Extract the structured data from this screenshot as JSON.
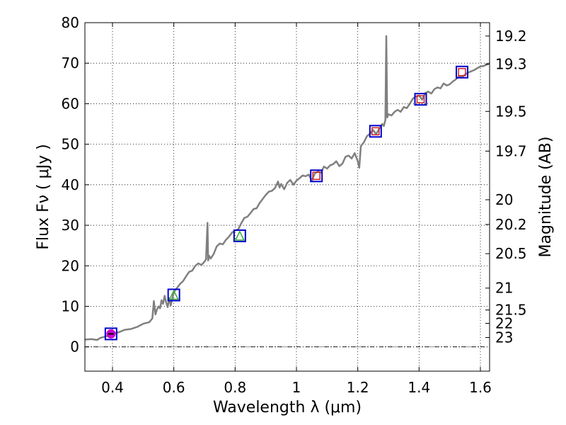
{
  "chart_data": {
    "type": "line",
    "xlabel": "Wavelength  λ (μm)",
    "ylabel": "Flux  Fν  ( μJy )",
    "ylabel2": "Magnitude (AB)",
    "xlim": [
      0.31,
      1.63
    ],
    "ylim": [
      -6,
      80
    ],
    "x_ticks": [
      {
        "value": 0.4,
        "label": "0.4"
      },
      {
        "value": 0.6,
        "label": "0.6"
      },
      {
        "value": 0.8,
        "label": "0.8"
      },
      {
        "value": 1.0,
        "label": "1"
      },
      {
        "value": 1.2,
        "label": "1.2"
      },
      {
        "value": 1.4,
        "label": "1.4"
      },
      {
        "value": 1.6,
        "label": "1.6"
      }
    ],
    "y_ticks": [
      {
        "value": 0,
        "label": "0"
      },
      {
        "value": 10,
        "label": "10"
      },
      {
        "value": 20,
        "label": "20"
      },
      {
        "value": 30,
        "label": "30"
      },
      {
        "value": 40,
        "label": "40"
      },
      {
        "value": 50,
        "label": "50"
      },
      {
        "value": 60,
        "label": "60"
      },
      {
        "value": 70,
        "label": "70"
      },
      {
        "value": 80,
        "label": "80"
      }
    ],
    "mag_ticks": [
      {
        "flux": 76.7,
        "label": "19.2"
      },
      {
        "flux": 69.8,
        "label": "19.3"
      },
      {
        "flux": 58.1,
        "label": "19.5"
      },
      {
        "flux": 48.3,
        "label": "19.7"
      },
      {
        "flux": 36.3,
        "label": "20"
      },
      {
        "flux": 30.2,
        "label": "20.2"
      },
      {
        "flux": 23.0,
        "label": "20.5"
      },
      {
        "flux": 14.5,
        "label": "21"
      },
      {
        "flux": 9.1,
        "label": "21.5"
      },
      {
        "flux": 5.8,
        "label": "22"
      },
      {
        "flux": 2.3,
        "label": "23"
      }
    ],
    "series": [
      {
        "name": "spectrum",
        "color": "#808080",
        "x": [
          0.31,
          0.33,
          0.35,
          0.36,
          0.37,
          0.38,
          0.39,
          0.4,
          0.41,
          0.42,
          0.44,
          0.46,
          0.48,
          0.5,
          0.52,
          0.53,
          0.535,
          0.54,
          0.545,
          0.55,
          0.555,
          0.56,
          0.565,
          0.57,
          0.575,
          0.58,
          0.585,
          0.59,
          0.6,
          0.61,
          0.62,
          0.63,
          0.64,
          0.65,
          0.66,
          0.67,
          0.68,
          0.69,
          0.7,
          0.705,
          0.71,
          0.712,
          0.715,
          0.72,
          0.73,
          0.74,
          0.75,
          0.76,
          0.77,
          0.78,
          0.79,
          0.8,
          0.81,
          0.82,
          0.83,
          0.84,
          0.85,
          0.86,
          0.87,
          0.88,
          0.89,
          0.9,
          0.91,
          0.92,
          0.93,
          0.94,
          0.945,
          0.95,
          0.96,
          0.97,
          0.98,
          0.99,
          1.0,
          1.01,
          1.02,
          1.03,
          1.04,
          1.05,
          1.06,
          1.07,
          1.08,
          1.09,
          1.1,
          1.11,
          1.12,
          1.13,
          1.14,
          1.15,
          1.16,
          1.17,
          1.18,
          1.19,
          1.2,
          1.205,
          1.21,
          1.22,
          1.23,
          1.24,
          1.25,
          1.26,
          1.27,
          1.28,
          1.285,
          1.29,
          1.293,
          1.296,
          1.3,
          1.31,
          1.32,
          1.33,
          1.34,
          1.35,
          1.36,
          1.37,
          1.38,
          1.39,
          1.4,
          1.41,
          1.42,
          1.43,
          1.44,
          1.45,
          1.46,
          1.47,
          1.48,
          1.49,
          1.5,
          1.51,
          1.52,
          1.53,
          1.54,
          1.55,
          1.56,
          1.57,
          1.58,
          1.59,
          1.6,
          1.61,
          1.62,
          1.63
        ],
        "y": [
          1.8,
          1.9,
          1.7,
          2.2,
          2.4,
          2.6,
          2.9,
          3.1,
          3.4,
          3.6,
          4.2,
          4.4,
          4.9,
          5.7,
          6.1,
          7.0,
          11.3,
          8.0,
          9.2,
          10.0,
          9.5,
          11.5,
          10.6,
          12.6,
          11.0,
          9.8,
          12.0,
          10.2,
          13.5,
          14.5,
          15.5,
          16.2,
          17.4,
          18.5,
          18.8,
          20.0,
          20.6,
          20.2,
          21.0,
          21.6,
          30.6,
          21.3,
          22.5,
          21.8,
          22.9,
          24.8,
          25.5,
          25.3,
          26.4,
          27.2,
          28.2,
          28.7,
          29.0,
          30.5,
          31.8,
          32.1,
          33.0,
          34.0,
          34.2,
          35.5,
          36.5,
          37.5,
          38.3,
          38.5,
          39.2,
          40.8,
          39.3,
          40.2,
          38.9,
          40.5,
          41.2,
          40.0,
          41.0,
          41.6,
          42.3,
          42.1,
          42.5,
          41.0,
          42.8,
          43.3,
          43.0,
          44.5,
          44.0,
          44.8,
          45.1,
          45.8,
          44.6,
          45.2,
          46.9,
          47.2,
          46.5,
          47.8,
          45.8,
          44.2,
          49.5,
          50.5,
          52.0,
          52.6,
          53.5,
          52.5,
          53.8,
          55.0,
          54.5,
          56.0,
          76.7,
          56.6,
          57.4,
          57.1,
          58.0,
          58.5,
          58.0,
          59.2,
          58.9,
          60.0,
          61.3,
          61.8,
          62.0,
          61.0,
          62.6,
          63.0,
          62.5,
          63.6,
          64.0,
          63.8,
          65.0,
          64.5,
          64.8,
          65.5,
          66.0,
          66.8,
          66.5,
          67.2,
          67.7,
          68.0,
          68.3,
          68.8,
          69.2,
          69.3,
          69.6,
          70.0
        ]
      }
    ],
    "markers": [
      {
        "x": 0.395,
        "y": 3.2,
        "box_color": "#0000cc",
        "inner_color": "#cc00cc",
        "inner": "circle"
      },
      {
        "x": 0.6,
        "y": 12.8,
        "box_color": "#0000cc",
        "inner_color": "#33aa33",
        "inner": "triangle"
      },
      {
        "x": 0.815,
        "y": 27.4,
        "box_color": "#0000cc",
        "inner_color": "#33aa33",
        "inner": "triangle"
      },
      {
        "x": 1.065,
        "y": 42.2,
        "box_color": "#0000cc",
        "inner_color": "#cc2222",
        "inner": "square"
      },
      {
        "x": 1.258,
        "y": 53.2,
        "box_color": "#0000cc",
        "inner_color": "#cc2222",
        "inner": "square"
      },
      {
        "x": 1.405,
        "y": 61.1,
        "box_color": "#0000cc",
        "inner_color": "#cc2222",
        "inner": "square"
      },
      {
        "x": 1.54,
        "y": 67.8,
        "box_color": "#0000cc",
        "inner_color": "#cc2222",
        "inner": "square"
      }
    ],
    "grid": true,
    "grid_style": "dotted",
    "hline": {
      "y": 0,
      "style": "dashdot",
      "color": "#000000"
    }
  }
}
